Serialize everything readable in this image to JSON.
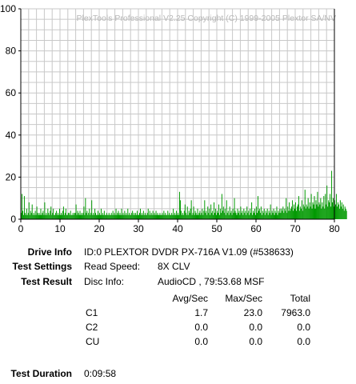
{
  "chart_data": {
    "type": "bar",
    "watermark": "PlexTools Professional V2.25 Copyright (C) 1999-2005 Plextor SA/NV",
    "xlim": [
      0,
      80
    ],
    "ylim": [
      0,
      100
    ],
    "xticks": [
      "0",
      "10",
      "20",
      "30",
      "40",
      "50",
      "60",
      "70",
      "80"
    ],
    "yticks": [
      "0",
      "20",
      "40",
      "60",
      "80",
      "100"
    ],
    "grid": true,
    "series": [
      {
        "color": "#009900",
        "x_start": 0,
        "x_step": 0.2,
        "values": [
          3,
          12,
          4,
          2,
          11,
          3,
          2,
          5,
          2,
          3,
          8,
          2,
          4,
          3,
          7,
          2,
          3,
          2,
          4,
          2,
          6,
          3,
          2,
          3,
          2,
          5,
          2,
          3,
          4,
          2,
          8,
          2,
          3,
          2,
          5,
          3,
          2,
          4,
          6,
          2,
          3,
          5,
          2,
          2,
          3,
          4,
          2,
          3,
          2,
          5,
          2,
          3,
          2,
          4,
          6,
          2,
          3,
          5,
          2,
          2,
          3,
          3,
          2,
          4,
          2,
          2,
          3,
          2,
          3,
          3,
          7,
          2,
          4,
          3,
          2,
          4,
          2,
          3,
          2,
          3,
          6,
          2,
          10,
          3,
          4,
          2,
          3,
          5,
          2,
          3,
          9,
          2,
          3,
          2,
          5,
          3,
          2,
          2,
          4,
          2,
          3,
          2,
          5,
          2,
          3,
          2,
          4,
          2,
          2,
          3,
          2,
          2,
          3,
          2,
          2,
          3,
          2,
          4,
          2,
          3,
          2,
          5,
          2,
          3,
          4,
          2,
          3,
          2,
          5,
          2,
          3,
          2,
          4,
          2,
          3,
          2,
          5,
          2,
          3,
          2,
          2,
          3,
          4,
          2,
          3,
          2,
          3,
          2,
          4,
          2,
          2,
          3,
          5,
          2,
          3,
          2,
          4,
          2,
          3,
          2,
          2,
          3,
          5,
          2,
          4,
          2,
          3,
          2,
          4,
          2,
          3,
          2,
          4,
          2,
          3,
          2,
          2,
          3,
          2,
          2,
          3,
          2,
          4,
          2,
          3,
          2,
          2,
          4,
          2,
          3,
          2,
          2,
          3,
          2,
          5,
          2,
          3,
          2,
          4,
          2,
          3,
          2,
          13,
          9,
          4,
          2,
          3,
          2,
          4,
          7,
          3,
          2,
          6,
          2,
          4,
          3,
          5,
          9,
          2,
          3,
          6,
          2,
          4,
          3,
          2,
          5,
          2,
          3,
          4,
          2,
          3,
          5,
          2,
          4,
          9,
          3,
          4,
          2,
          6,
          3,
          5,
          2,
          7,
          3,
          4,
          2,
          8,
          3,
          5,
          2,
          4,
          3,
          7,
          2,
          5,
          3,
          12,
          4,
          6,
          3,
          5,
          2,
          9,
          3,
          4,
          2,
          6,
          3,
          4,
          2,
          5,
          3,
          10,
          4,
          3,
          2,
          5,
          3,
          4,
          2,
          6,
          3,
          4,
          2,
          5,
          3,
          4,
          2,
          6,
          3,
          4,
          2,
          5,
          3,
          8,
          2,
          4,
          3,
          5,
          2,
          6,
          3,
          11,
          4,
          5,
          3,
          6,
          2,
          4,
          3,
          5,
          2,
          4,
          3,
          5,
          2,
          4,
          3,
          7,
          2,
          4,
          3,
          5,
          2,
          4,
          3,
          6,
          2,
          4,
          3,
          5,
          3,
          5,
          4,
          6,
          3,
          5,
          4,
          10,
          3,
          6,
          4,
          8,
          4,
          5,
          6,
          9,
          4,
          7,
          5,
          8,
          4,
          6,
          7,
          11,
          4,
          6,
          5,
          9,
          4,
          7,
          6,
          14,
          5,
          7,
          6,
          10,
          5,
          8,
          6,
          12,
          5,
          8,
          7,
          11,
          5,
          9,
          7,
          13,
          6,
          8,
          7,
          10,
          5,
          8,
          6,
          11,
          5,
          12,
          7,
          16,
          6,
          9,
          8,
          12,
          6,
          23,
          8,
          10,
          6,
          9,
          7,
          12,
          6,
          8,
          7,
          5,
          9,
          6,
          8,
          5,
          7,
          4,
          6,
          5,
          4
        ]
      }
    ]
  },
  "info": {
    "drive_label": "Drive Info",
    "drive_value": "ID:0 PLEXTOR DVDR PX-716A V1.09 (#538633)",
    "settings_label": "Test Settings",
    "read_speed_label": "Read Speed:",
    "read_speed_value": "8X CLV",
    "result_label": "Test Result",
    "disc_info_label": "Disc Info:",
    "disc_info_value": "AudioCD , 79:53.68 MSF",
    "table": {
      "headers": [
        "Avg/Sec",
        "Max/Sec",
        "Total"
      ],
      "rows": [
        {
          "name": "C1",
          "avg": "1.7",
          "max": "23.0",
          "total": "7963.0"
        },
        {
          "name": "C2",
          "avg": "0.0",
          "max": "0.0",
          "total": "0.0"
        },
        {
          "name": "CU",
          "avg": "0.0",
          "max": "0.0",
          "total": "0.0"
        }
      ]
    },
    "duration_label": "Test Duration",
    "duration_value": "0:09:58"
  }
}
